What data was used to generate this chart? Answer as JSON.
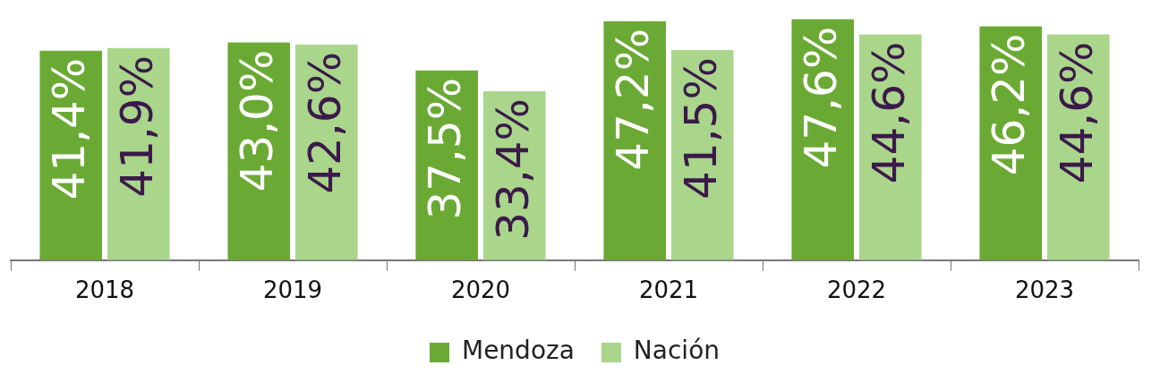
{
  "chart_data": {
    "type": "bar",
    "categories": [
      "2018",
      "2019",
      "2020",
      "2021",
      "2022",
      "2023"
    ],
    "series": [
      {
        "name": "Mendoza",
        "color": "#6aaa34",
        "values": [
          41.4,
          43.0,
          37.5,
          47.2,
          47.6,
          46.2
        ],
        "value_labels": [
          "41,4%",
          "43,0%",
          "37,5%",
          "47,2%",
          "47,6%",
          "46,2%"
        ]
      },
      {
        "name": "Nación",
        "color": "#a9d68a",
        "values": [
          41.9,
          42.6,
          33.4,
          41.5,
          44.6,
          44.6
        ],
        "value_labels": [
          "41,9%",
          "42,6%",
          "33,4%",
          "41,5%",
          "44,6%",
          "44,6%"
        ]
      }
    ],
    "tick_labels": "x",
    "grid": false,
    "legend": "bottom"
  }
}
